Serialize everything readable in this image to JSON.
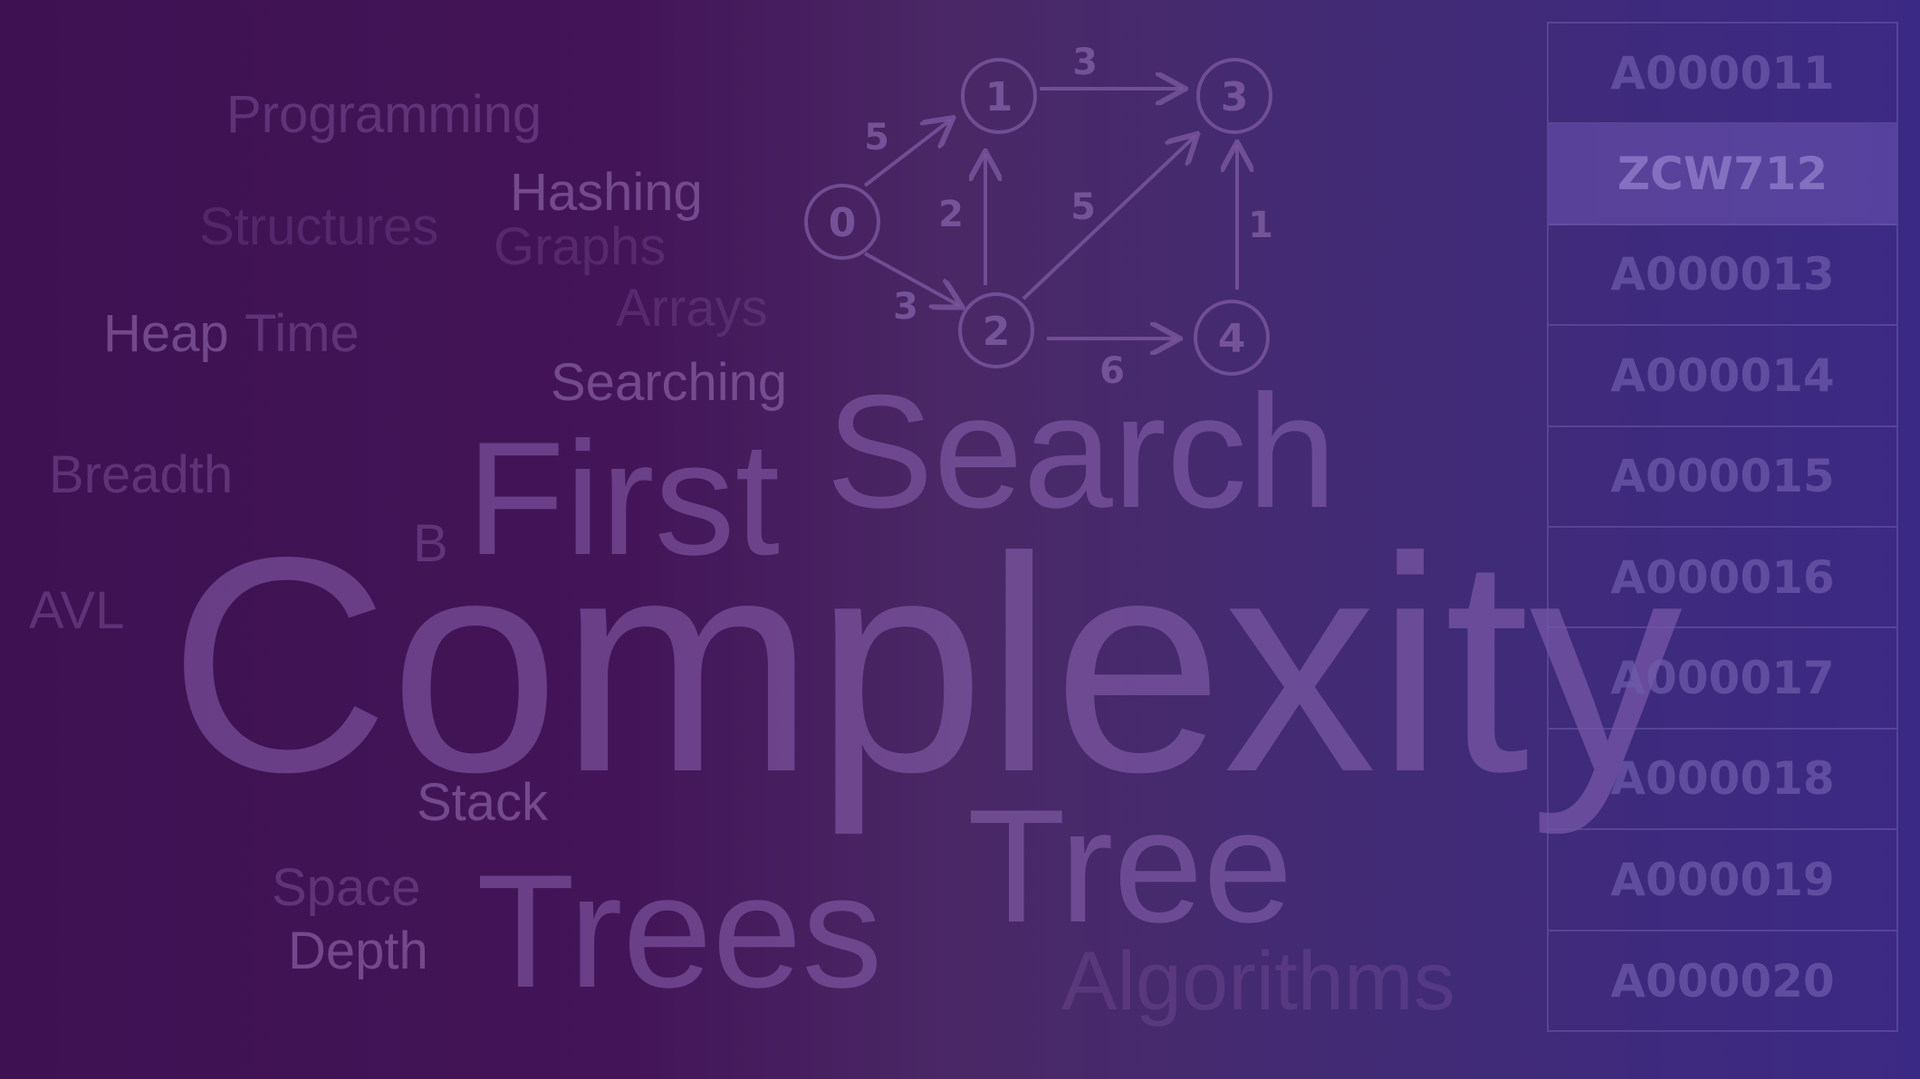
{
  "words": [
    {
      "key": "programming",
      "text": "Programming"
    },
    {
      "key": "hashing",
      "text": "Hashing"
    },
    {
      "key": "structures",
      "text": "Structures"
    },
    {
      "key": "graphs",
      "text": "Graphs"
    },
    {
      "key": "arrays",
      "text": "Arrays"
    },
    {
      "key": "heap",
      "text": "Heap"
    },
    {
      "key": "time",
      "text": "Time"
    },
    {
      "key": "searching",
      "text": "Searching"
    },
    {
      "key": "breadth",
      "text": "Breadth"
    },
    {
      "key": "first",
      "text": "First"
    },
    {
      "key": "search",
      "text": "Search"
    },
    {
      "key": "b",
      "text": "B"
    },
    {
      "key": "avl",
      "text": "AVL"
    },
    {
      "key": "complexity",
      "text": "Complexity"
    },
    {
      "key": "stack",
      "text": "Stack"
    },
    {
      "key": "tree",
      "text": "Tree"
    },
    {
      "key": "space",
      "text": "Space"
    },
    {
      "key": "trees",
      "text": "Trees"
    },
    {
      "key": "depth",
      "text": "Depth"
    },
    {
      "key": "algorithms",
      "text": "Algorithms"
    }
  ],
  "graph": {
    "nodes": [
      {
        "id": "0",
        "label": "0"
      },
      {
        "id": "1",
        "label": "1"
      },
      {
        "id": "2",
        "label": "2"
      },
      {
        "id": "3",
        "label": "3"
      },
      {
        "id": "4",
        "label": "4"
      }
    ],
    "edges": [
      {
        "from": "0",
        "to": "1",
        "weight": "5"
      },
      {
        "from": "0",
        "to": "2",
        "weight": "3"
      },
      {
        "from": "2",
        "to": "1",
        "weight": "2"
      },
      {
        "from": "1",
        "to": "3",
        "weight": "3"
      },
      {
        "from": "2",
        "to": "3",
        "weight": "5"
      },
      {
        "from": "2",
        "to": "4",
        "weight": "6"
      },
      {
        "from": "4",
        "to": "3",
        "weight": "1"
      }
    ]
  },
  "sequence_list": {
    "items": [
      {
        "label": "A000011",
        "active": false
      },
      {
        "label": "ZCW712",
        "active": true
      },
      {
        "label": "A000013",
        "active": false
      },
      {
        "label": "A000014",
        "active": false
      },
      {
        "label": "A000015",
        "active": false
      },
      {
        "label": "A000016",
        "active": false
      },
      {
        "label": "A000017",
        "active": false
      },
      {
        "label": "A000018",
        "active": false
      },
      {
        "label": "A000019",
        "active": false
      },
      {
        "label": "A000020",
        "active": false
      }
    ]
  },
  "colors": {
    "background_left": "#3d1152",
    "background_right": "#3b2a85",
    "panel_border": "#6e5aaa",
    "active_cell": "#785fbe"
  }
}
